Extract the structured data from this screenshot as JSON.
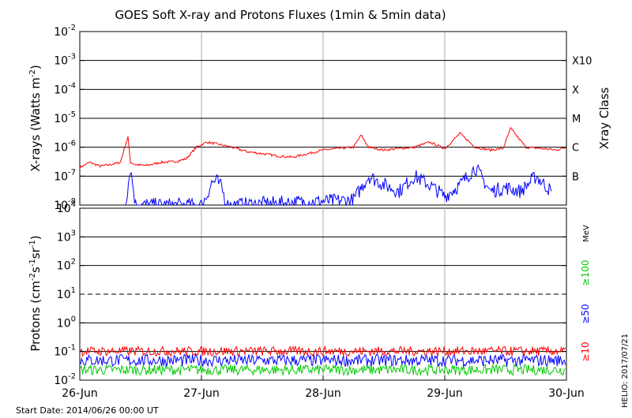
{
  "chart_data": [
    {
      "type": "line",
      "title": "GOES Soft X-ray and Protons Fluxes   (1min & 5min data)",
      "ylabel_main": "X-rays (Watts m",
      "ylabel_sup": "-2",
      "ylabel_tail": ")",
      "right_label": "Xray Class",
      "yscale": "log",
      "ylim": [
        1e-08,
        0.01
      ],
      "yticks": [
        {
          "mantissa": "10",
          "exp": "-8"
        },
        {
          "mantissa": "10",
          "exp": "-7"
        },
        {
          "mantissa": "10",
          "exp": "-6"
        },
        {
          "mantissa": "10",
          "exp": "-5"
        },
        {
          "mantissa": "10",
          "exp": "-4"
        },
        {
          "mantissa": "10",
          "exp": "-3"
        },
        {
          "mantissa": "10",
          "exp": "-2"
        }
      ],
      "class_labels": [
        {
          "label": "B",
          "value": 1e-07
        },
        {
          "label": "C",
          "value": 1e-06
        },
        {
          "label": "M",
          "value": 1e-05
        },
        {
          "label": "X",
          "value": 0.0001
        },
        {
          "label": "X10",
          "value": 0.001
        }
      ],
      "xlim": [
        "2014-06-26",
        "2014-06-30"
      ],
      "series": [
        {
          "color": "#ff0000",
          "x": [
            "2014-06-26T00:00",
            "2014-06-26T02:00",
            "2014-06-26T04:00",
            "2014-06-26T06:00",
            "2014-06-26T08:00",
            "2014-06-26T09:30",
            "2014-06-26T10:00",
            "2014-06-26T11:00",
            "2014-06-26T13:00",
            "2014-06-26T16:00",
            "2014-06-26T19:00",
            "2014-06-26T21:00",
            "2014-06-26T23:00",
            "2014-06-27T01:00",
            "2014-06-27T03:00",
            "2014-06-27T06:00",
            "2014-06-27T09:00",
            "2014-06-27T12:00",
            "2014-06-27T15:00",
            "2014-06-27T18:00",
            "2014-06-27T21:00",
            "2014-06-28T00:00",
            "2014-06-28T03:00",
            "2014-06-28T06:00",
            "2014-06-28T07:30",
            "2014-06-28T09:00",
            "2014-06-28T12:00",
            "2014-06-28T15:00",
            "2014-06-28T18:00",
            "2014-06-28T21:00",
            "2014-06-29T00:00",
            "2014-06-29T03:00",
            "2014-06-29T06:00",
            "2014-06-29T09:00",
            "2014-06-29T11:30",
            "2014-06-29T13:00",
            "2014-06-29T16:00",
            "2014-06-29T19:00",
            "2014-06-29T22:00",
            "2014-06-30T00:00"
          ],
          "y": [
            2e-07,
            3e-07,
            2.2e-07,
            2.5e-07,
            3e-07,
            2.3e-06,
            3e-07,
            2.5e-07,
            2.3e-07,
            3e-07,
            3.2e-07,
            4e-07,
            1e-06,
            1.5e-06,
            1.3e-06,
            1e-06,
            7e-07,
            6e-07,
            5e-07,
            4.5e-07,
            6e-07,
            8e-07,
            9e-07,
            1e-06,
            2.6e-06,
            1e-06,
            8e-07,
            9e-07,
            1e-06,
            1.5e-06,
            9e-07,
            3e-06,
            1e-06,
            8e-07,
            9e-07,
            4.5e-06,
            1e-06,
            9e-07,
            8e-07,
            1e-06
          ]
        },
        {
          "color": "#0000ff",
          "x": [
            "2014-06-26T09:00",
            "2014-06-26T10:00",
            "2014-06-26T11:00",
            "2014-06-27T00:00",
            "2014-06-27T01:00",
            "2014-06-27T02:00",
            "2014-06-27T03:00",
            "2014-06-27T04:00",
            "2014-06-27T05:00",
            "2014-06-28T06:00",
            "2014-06-28T09:00",
            "2014-06-28T12:00",
            "2014-06-28T15:00",
            "2014-06-28T18:00",
            "2014-06-28T21:00",
            "2014-06-29T00:00",
            "2014-06-29T03:00",
            "2014-06-29T06:00",
            "2014-06-29T09:00",
            "2014-06-29T12:00",
            "2014-06-29T15:00",
            "2014-06-29T18:00",
            "2014-06-29T21:00"
          ],
          "y": [
            1e-08,
            2e-07,
            1e-08,
            1e-08,
            2e-08,
            6e-08,
            7e-08,
            4e-08,
            1e-08,
            1.5e-08,
            1e-07,
            5e-08,
            3e-08,
            1e-07,
            5e-08,
            2e-08,
            5e-08,
            2e-07,
            3e-08,
            4e-08,
            3e-08,
            1e-07,
            3e-08
          ]
        }
      ]
    },
    {
      "type": "line",
      "ylabel_main": "Protons (cm",
      "ylabel_sup1": "-2",
      "ylabel_mid1": "s",
      "ylabel_sup2": "-1",
      "ylabel_mid2": "sr",
      "ylabel_sup3": "-1",
      "ylabel_tail": ")",
      "right_unit": "MeV",
      "yscale": "log",
      "ylim": [
        0.01,
        10000
      ],
      "yticks": [
        {
          "mantissa": "10",
          "exp": "-2"
        },
        {
          "mantissa": "10",
          "exp": "-1"
        },
        {
          "mantissa": "10",
          "exp": "0"
        },
        {
          "mantissa": "10",
          "exp": "1"
        },
        {
          "mantissa": "10",
          "exp": "2"
        },
        {
          "mantissa": "10",
          "exp": "3"
        },
        {
          "mantissa": "10",
          "exp": "4"
        }
      ],
      "threshold": 10,
      "xlim": [
        "2014-06-26",
        "2014-06-30"
      ],
      "xticks": [
        "26-Jun",
        "27-Jun",
        "28-Jun",
        "29-Jun",
        "30-Jun"
      ],
      "series": [
        {
          "name": "≥10",
          "color": "#ff0000",
          "level": 0.1,
          "spread": [
            0.07,
            0.15
          ]
        },
        {
          "name": "≥50",
          "color": "#0000ff",
          "level": 0.05,
          "spread": [
            0.03,
            0.08
          ]
        },
        {
          "name": "≥100",
          "color": "#00cc00",
          "level": 0.025,
          "spread": [
            0.015,
            0.035
          ]
        }
      ]
    }
  ],
  "footer": {
    "start_date": "Start Date: 2014/06/26 00:00 UT",
    "credit": "HELIO: 2017/07/21"
  }
}
